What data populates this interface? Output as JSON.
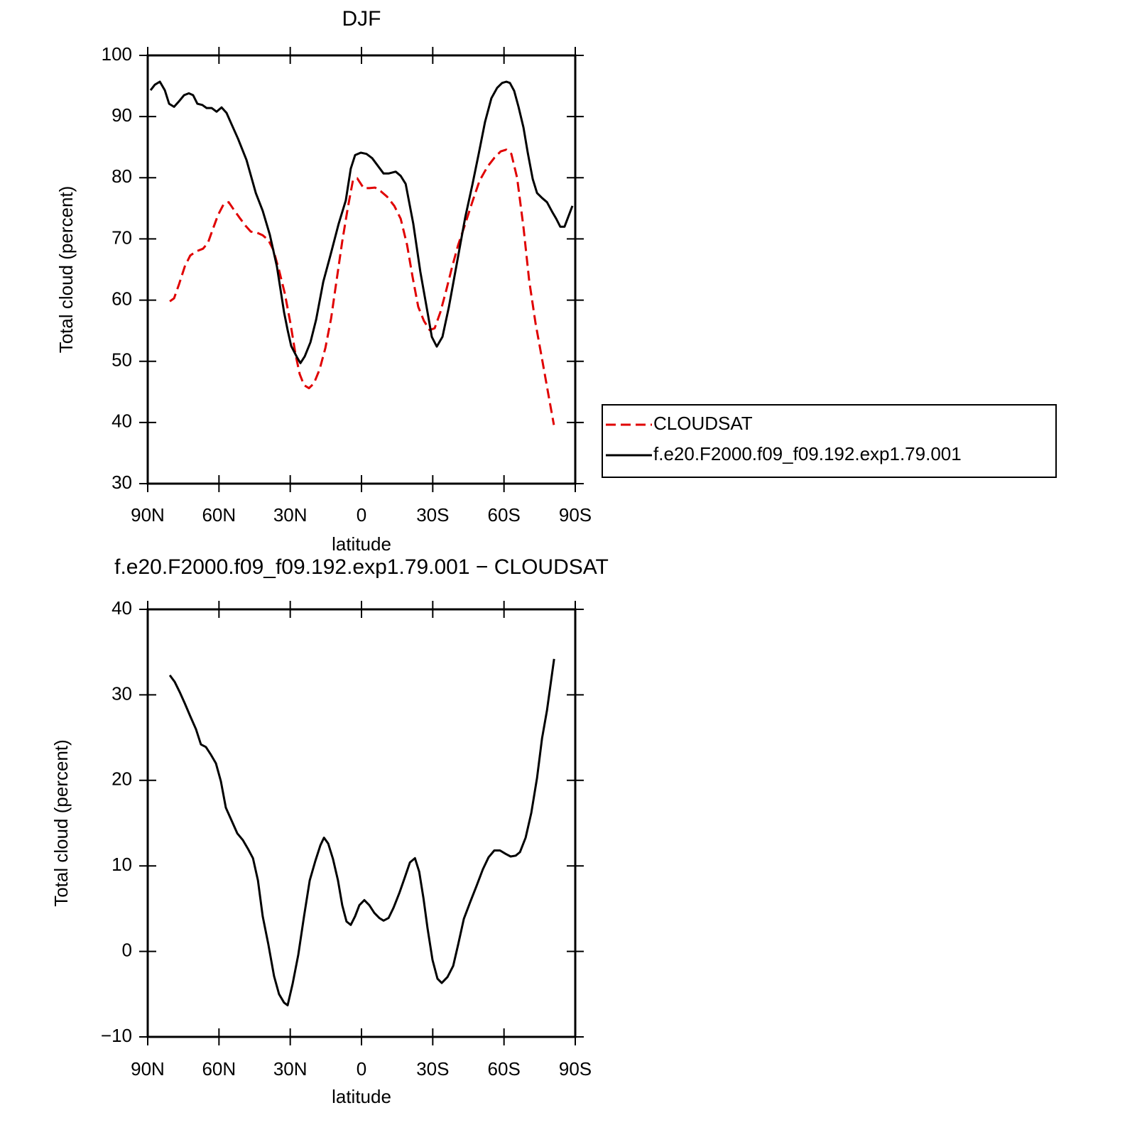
{
  "chart_data": [
    {
      "type": "line",
      "title": "DJF",
      "x_label": "latitude",
      "y_label": "Total cloud (percent)",
      "xlim": [
        90,
        -90
      ],
      "xticks": [
        {
          "value": 90,
          "label": "90N"
        },
        {
          "value": 60,
          "label": "60N"
        },
        {
          "value": 30,
          "label": "30N"
        },
        0,
        {
          "value": -30,
          "label": "30S"
        },
        {
          "value": -60,
          "label": "60S"
        },
        {
          "value": -90,
          "label": "90S"
        }
      ],
      "ylim": [
        30,
        100
      ],
      "yticks": [
        30,
        40,
        50,
        60,
        70,
        80,
        90,
        100
      ],
      "legend": "right",
      "series": [
        {
          "name": "CLOUDSAT",
          "color": "#e00000",
          "dashed": true,
          "x": [
            80.7,
            78.9,
            76.8,
            74.4,
            72.1,
            69.4,
            66.7,
            64.6,
            62.5,
            60.4,
            58,
            55.9,
            53.8,
            51.4,
            48.7,
            46.6,
            43.9,
            41.6,
            39.2,
            37.1,
            34.7,
            32.3,
            29.9,
            27.8,
            26,
            24.2,
            22.1,
            20,
            17.6,
            15.2,
            12.8,
            10.5,
            8.1,
            5.7,
            3.6,
            1.8,
            -0.9,
            -3.3,
            -5.7,
            -8.1,
            -10.8,
            -13.8,
            -16.5,
            -19.2,
            -21.5,
            -23.9,
            -26.3,
            -28.7,
            -30.8,
            -33.2,
            -35.6,
            -38,
            -40.7,
            -43.7,
            -46.7,
            -49.7,
            -53,
            -56,
            -58.6,
            -61,
            -63.1,
            -65.5,
            -68.2,
            -70.6,
            -73.3,
            -76,
            -78.4,
            -81
          ],
          "values": [
            59.8,
            60.3,
            62.6,
            65.5,
            67.3,
            68,
            68.4,
            69.4,
            71.7,
            73.9,
            75.7,
            76,
            74.8,
            73.5,
            72.1,
            71.2,
            71,
            70.6,
            69.8,
            68.2,
            64.9,
            61.1,
            56.2,
            51.2,
            47.9,
            46.1,
            45.6,
            46.4,
            48.7,
            52.2,
            57,
            63.2,
            69.6,
            75.2,
            79.6,
            79.9,
            78.3,
            78.3,
            78.4,
            77.8,
            76.9,
            75.4,
            73.3,
            69,
            63.8,
            58.9,
            56.6,
            55.1,
            55.4,
            58,
            61.5,
            65.2,
            69,
            72.5,
            76.1,
            79.5,
            81.8,
            83.3,
            84.3,
            84.6,
            83.9,
            80,
            71.9,
            63.2,
            56.2,
            50.4,
            45.2,
            39.6
          ]
        },
        {
          "name": "f.e20.F2000.f09_f09.192.exp1.79.001",
          "color": "#000000",
          "dashed": false,
          "x": [
            88.8,
            87,
            84.9,
            82.8,
            81,
            78.9,
            76.8,
            74.7,
            72.7,
            70.9,
            69.1,
            67,
            65.2,
            63.1,
            61,
            58.9,
            56.8,
            55,
            52,
            48.4,
            44.5,
            41.6,
            38.6,
            35.6,
            32.6,
            31.1,
            29.6,
            27.2,
            25.7,
            23.9,
            21.5,
            19.1,
            16.1,
            13.1,
            9.6,
            6.6,
            4.5,
            2.7,
            0.3,
            -2.1,
            -4.5,
            -6.6,
            -9.3,
            -11.4,
            -14.4,
            -16.5,
            -18.6,
            -21.8,
            -24.8,
            -27.8,
            -29.6,
            -31.7,
            -34.1,
            -36.8,
            -40.1,
            -43.7,
            -46.7,
            -49.4,
            -52,
            -54.7,
            -57.1,
            -59.2,
            -61,
            -62.5,
            -64.3,
            -66.1,
            -68.2,
            -70,
            -72.1,
            -73.9,
            -76,
            -78.1,
            -80.2,
            -82,
            -83.7,
            -85.5,
            -88.8
          ],
          "values": [
            94.3,
            95.2,
            95.7,
            94.3,
            92.1,
            91.6,
            92.5,
            93.5,
            93.8,
            93.5,
            92.1,
            91.9,
            91.4,
            91.4,
            90.8,
            91.5,
            90.6,
            89,
            86.4,
            82.9,
            77.5,
            74.6,
            70.7,
            65.5,
            58,
            55.1,
            52.5,
            50.7,
            49.7,
            50.8,
            53.1,
            56.8,
            63,
            67.3,
            72.5,
            76.3,
            81.5,
            83.7,
            84.1,
            83.9,
            83.2,
            82.1,
            80.7,
            80.7,
            81,
            80.3,
            79,
            72.5,
            64.6,
            58,
            54,
            52.4,
            54,
            58.9,
            65.9,
            73.6,
            78.9,
            84,
            89.1,
            93,
            94.7,
            95.5,
            95.7,
            95.5,
            94.2,
            91.6,
            88.2,
            84.1,
            79.8,
            77.5,
            76.7,
            76,
            74.5,
            73.3,
            72,
            72,
            75.4
          ]
        }
      ]
    },
    {
      "type": "line",
      "title": "f.e20.F2000.f09_f09.192.exp1.79.001 − CLOUDSAT",
      "x_label": "latitude",
      "y_label": "Total cloud (percent)",
      "xlim": [
        90,
        -90
      ],
      "xticks": [
        {
          "value": 90,
          "label": "90N"
        },
        {
          "value": 60,
          "label": "60N"
        },
        {
          "value": 30,
          "label": "30N"
        },
        0,
        {
          "value": -30,
          "label": "30S"
        },
        {
          "value": -60,
          "label": "60S"
        },
        {
          "value": -90,
          "label": "90S"
        }
      ],
      "ylim": [
        -10,
        40
      ],
      "yticks": [
        {
          "value": -10,
          "label": "−10"
        },
        0,
        10,
        20,
        30,
        40
      ],
      "series": [
        {
          "color": "#000000",
          "dashed": false,
          "x": [
            80.7,
            78.6,
            76.5,
            74.4,
            72.1,
            69.7,
            67.6,
            65.5,
            63.4,
            61.3,
            59.2,
            57.1,
            54.7,
            52.3,
            49.9,
            47.8,
            45.7,
            43.6,
            41.6,
            39.2,
            36.8,
            34.7,
            32.6,
            31.1,
            29,
            26.6,
            24.2,
            21.8,
            19.4,
            17.3,
            15.8,
            14,
            12,
            9.9,
            8.1,
            6.3,
            4.5,
            2.7,
            0.9,
            -1.2,
            -3.3,
            -5.4,
            -7.5,
            -9.3,
            -11.4,
            -13.5,
            -15.9,
            -18.3,
            -20.4,
            -22.5,
            -24.3,
            -26.1,
            -27.8,
            -29.9,
            -32,
            -33.8,
            -36.2,
            -38.6,
            -40.7,
            -43.1,
            -45.8,
            -48.5,
            -51.1,
            -53.5,
            -55.9,
            -58.3,
            -60.7,
            -62.8,
            -64.9,
            -66.7,
            -69.1,
            -71.5,
            -73.9,
            -76,
            -78.1,
            -81.1
          ],
          "values": [
            32.3,
            31.5,
            30.3,
            29,
            27.5,
            26,
            24.2,
            23.9,
            23,
            22,
            19.9,
            16.8,
            15.3,
            13.8,
            13,
            12,
            10.9,
            8.3,
            4.1,
            0.8,
            -2.9,
            -5,
            -6,
            -6.3,
            -3.8,
            -0.4,
            4.1,
            8.3,
            10.6,
            12.4,
            13.3,
            12.6,
            10.8,
            8.3,
            5.4,
            3.5,
            3.1,
            4.1,
            5.4,
            6,
            5.4,
            4.5,
            3.9,
            3.6,
            3.9,
            5.1,
            6.8,
            8.7,
            10.4,
            10.9,
            9.3,
            6.2,
            2.7,
            -1,
            -3.2,
            -3.7,
            -3,
            -1.7,
            0.8,
            3.8,
            5.8,
            7.7,
            9.6,
            11,
            11.8,
            11.8,
            11.4,
            11.1,
            11.2,
            11.6,
            13.3,
            16.2,
            20.3,
            24.9,
            28.2,
            34.2
          ]
        }
      ]
    }
  ]
}
